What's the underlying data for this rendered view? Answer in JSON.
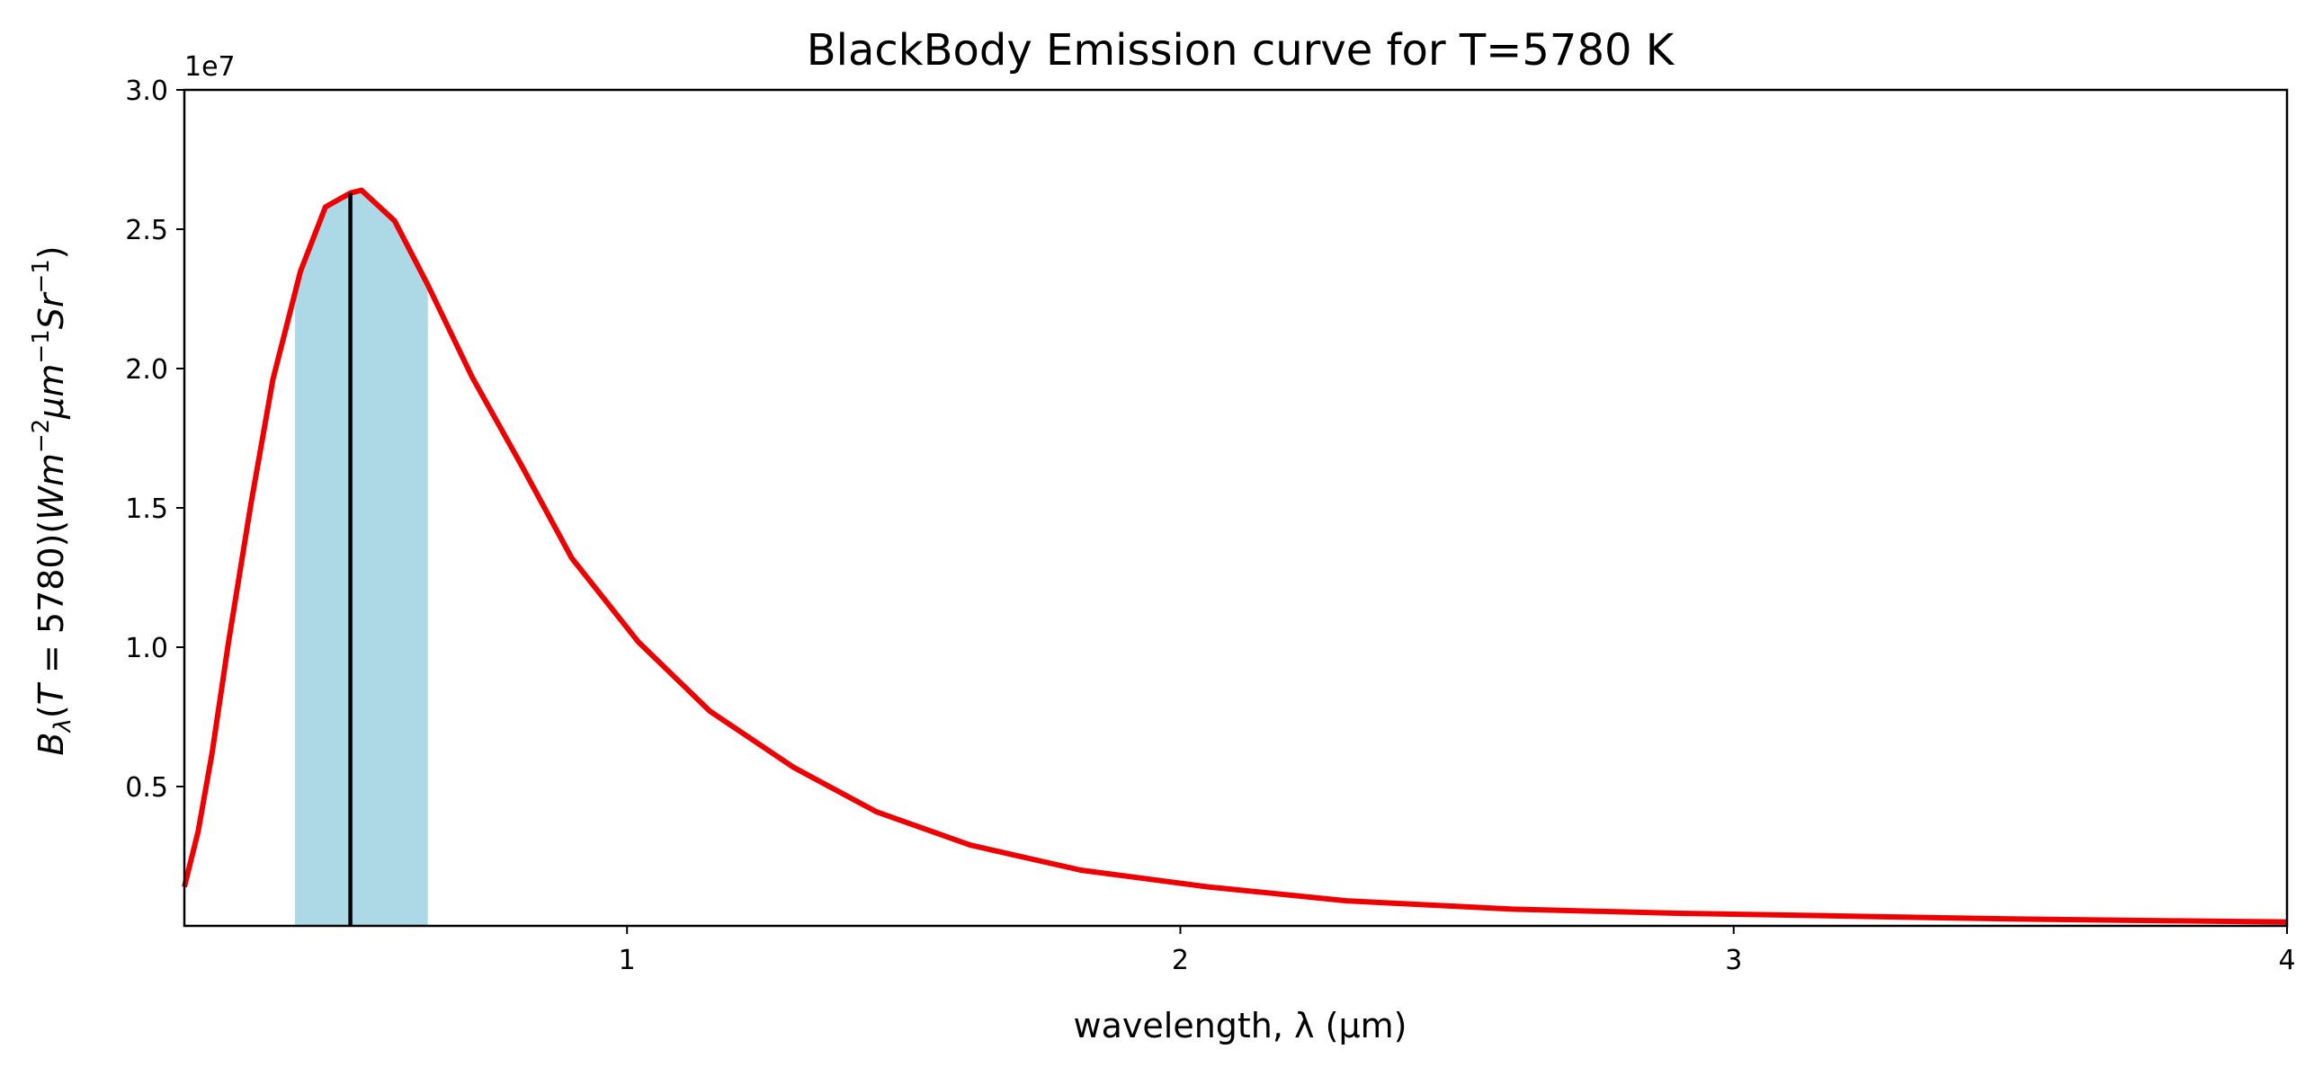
{
  "chart_data": {
    "type": "line",
    "title": "BlackBody Emission curve for T=5780 K",
    "xlabel": "wavelength, λ (μm)",
    "ylabel": {
      "B": "B",
      "sub": "λ",
      "open": "(",
      "T": "T",
      "eq": " = 5780)(",
      "W": "Wm",
      "exp1": "−2",
      "mu": "μm",
      "exp2": "−1",
      "Sr": "Sr",
      "exp3": "−1",
      "close": ")"
    },
    "y_offset_label": "1e7",
    "y_scale": 10000000,
    "xlim": [
      0.2,
      4.0
    ],
    "ylim": [
      0,
      3.0
    ],
    "x_ticks": [
      {
        "value": 1,
        "label": "1"
      },
      {
        "value": 2,
        "label": "2"
      },
      {
        "value": 3,
        "label": "3"
      },
      {
        "value": 4,
        "label": "4"
      }
    ],
    "y_ticks": [
      {
        "value": 0.5,
        "label": "0.5"
      },
      {
        "value": 1.0,
        "label": "1.0"
      },
      {
        "value": 1.5,
        "label": "1.5"
      },
      {
        "value": 2.0,
        "label": "2.0"
      },
      {
        "value": 2.5,
        "label": "2.5"
      },
      {
        "value": 3.0,
        "label": "3.0"
      }
    ],
    "grid": false,
    "legend": "none",
    "series": [
      {
        "color": "#ee0000",
        "x": [
          0.2,
          0.225,
          0.25,
          0.28,
          0.32,
          0.36,
          0.41,
          0.455,
          0.5,
          0.52,
          0.58,
          0.64,
          0.72,
          0.81,
          0.9,
          1.02,
          1.15,
          1.3,
          1.45,
          1.62,
          1.82,
          2.05,
          2.3,
          2.6,
          2.9,
          3.2,
          3.5,
          3.8,
          4.0
        ],
        "y": [
          0.14,
          0.34,
          0.62,
          1.02,
          1.51,
          1.96,
          2.35,
          2.58,
          2.63,
          2.64,
          2.53,
          2.3,
          1.97,
          1.65,
          1.32,
          1.02,
          0.77,
          0.57,
          0.41,
          0.29,
          0.2,
          0.14,
          0.09,
          0.06,
          0.045,
          0.035,
          0.025,
          0.018,
          0.014
        ]
      }
    ],
    "shaded_region": {
      "x_start": 0.4,
      "x_end": 0.64,
      "color": "#add8e6"
    },
    "vertical_line": {
      "x": 0.5,
      "color": "#000000"
    }
  }
}
